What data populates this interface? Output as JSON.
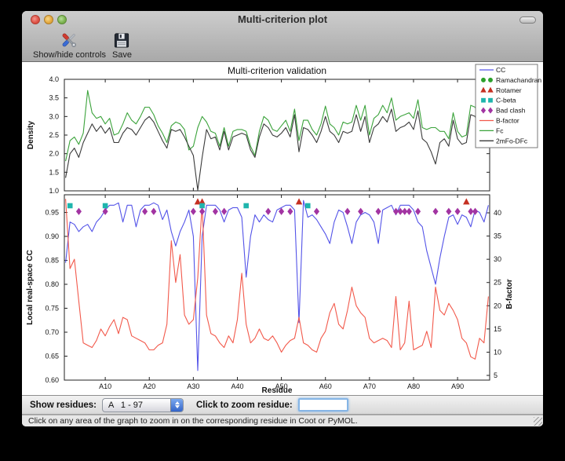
{
  "window": {
    "title": "Multi-criterion plot",
    "toolbar": {
      "controls_label": "Show/hide controls",
      "save_label": "Save"
    }
  },
  "controls": {
    "show_residues_label": "Show residues:",
    "range_value": "A   1 - 97",
    "zoom_label": "Click to zoom residue:",
    "zoom_input_value": ""
  },
  "status_bar": {
    "text": "Click on any area of the graph to zoom in on the corresponding residue in Coot or PyMOL."
  },
  "chart_data": [
    {
      "type": "line",
      "title": "Multi-criterion validation",
      "ylabel": "Density",
      "ylim": [
        1.0,
        4.0
      ],
      "yticks": [
        4.0,
        3.5,
        3.0,
        2.5,
        2.0,
        1.5,
        1.0
      ],
      "ytick_labels": [
        "4.0",
        "3.5",
        "3.0",
        "2.5",
        "2.0",
        "1.5",
        "1.0"
      ],
      "x_start": 1,
      "series": [
        {
          "name": "Fc",
          "color": "#3ba33b",
          "values": [
            1.8,
            2.35,
            2.45,
            2.25,
            2.55,
            3.7,
            3.1,
            2.95,
            3.0,
            2.8,
            2.95,
            2.5,
            2.55,
            2.8,
            3.1,
            2.9,
            2.8,
            3.0,
            3.25,
            3.25,
            3.05,
            2.75,
            2.55,
            2.3,
            2.75,
            2.85,
            2.8,
            2.65,
            2.1,
            2.2,
            2.7,
            3.0,
            2.85,
            2.6,
            2.55,
            2.2,
            2.7,
            2.2,
            2.6,
            2.65,
            2.65,
            2.6,
            2.2,
            1.95,
            2.6,
            3.0,
            2.9,
            2.65,
            2.6,
            2.75,
            2.9,
            2.6,
            3.2,
            2.35,
            2.9,
            2.9,
            2.65,
            2.5,
            2.8,
            3.28,
            2.8,
            2.7,
            2.5,
            2.85,
            2.8,
            2.85,
            3.3,
            2.9,
            3.3,
            2.5,
            2.95,
            3.05,
            3.3,
            3.1,
            3.5,
            2.9,
            3.0,
            3.05,
            3.1,
            2.95,
            3.45,
            2.7,
            2.65,
            2.7,
            2.7,
            2.6,
            2.6,
            2.4,
            3.1,
            2.6,
            2.45,
            2.5,
            3.3,
            3.25,
            2.85,
            3.5,
            3.1
          ]
        },
        {
          "name": "2mFo-DFc",
          "color": "#3a3a3a",
          "values": [
            1.35,
            2.0,
            2.15,
            1.9,
            2.3,
            2.55,
            2.8,
            2.6,
            2.75,
            2.55,
            2.7,
            2.3,
            2.3,
            2.55,
            2.7,
            2.65,
            2.5,
            2.7,
            2.9,
            3.0,
            2.85,
            2.6,
            2.35,
            2.15,
            2.65,
            2.6,
            2.65,
            2.45,
            2.2,
            1.95,
            1.02,
            1.9,
            2.65,
            2.4,
            2.45,
            2.1,
            2.6,
            2.1,
            2.45,
            2.5,
            2.55,
            2.5,
            2.1,
            1.9,
            2.45,
            2.8,
            2.7,
            2.5,
            2.45,
            2.55,
            2.7,
            2.45,
            3.05,
            2.05,
            2.7,
            2.65,
            2.5,
            2.3,
            2.6,
            3.0,
            2.6,
            2.5,
            2.3,
            2.6,
            2.55,
            2.6,
            3.05,
            2.6,
            3.0,
            2.3,
            2.7,
            2.8,
            3.0,
            2.85,
            3.2,
            2.6,
            2.7,
            2.75,
            2.85,
            2.65,
            3.15,
            2.4,
            2.3,
            2.05,
            1.72,
            2.3,
            2.4,
            2.2,
            2.9,
            2.4,
            2.25,
            2.3,
            3.05,
            3.0,
            2.6,
            2.9,
            3.0
          ]
        }
      ]
    },
    {
      "type": "line+scatter",
      "xlabel": "Residue",
      "ylabel": "Local real-space CC",
      "ylabel_right": "B-factor",
      "ylim": [
        0.6,
        0.987
      ],
      "ylim_right": [
        5,
        43.8
      ],
      "yticks": [
        0.95,
        0.9,
        0.85,
        0.8,
        0.75,
        0.7,
        0.65,
        0.6
      ],
      "ytick_labels": [
        "0.95",
        "0.90",
        "0.85",
        "0.80",
        "0.75",
        "0.70",
        "0.65",
        "0.60"
      ],
      "yticks_right": [
        40,
        35,
        30,
        25,
        20,
        15,
        10,
        5
      ],
      "ytick_labels_right": [
        "40",
        "35",
        "30",
        "25",
        "20",
        "15",
        "10",
        "5"
      ],
      "xticks": [
        10,
        20,
        30,
        40,
        50,
        60,
        70,
        80,
        90
      ],
      "xtick_labels": [
        "A10",
        "A20",
        "A30",
        "A40",
        "A50",
        "A60",
        "A70",
        "A80",
        "A90"
      ],
      "x_start": 1,
      "series": [
        {
          "name": "CC",
          "axis": "left",
          "color": "#5353e8",
          "values": [
            0.845,
            0.93,
            0.925,
            0.91,
            0.92,
            0.925,
            0.91,
            0.93,
            0.94,
            0.955,
            0.965,
            0.965,
            0.97,
            0.93,
            0.965,
            0.965,
            0.92,
            0.955,
            0.965,
            0.965,
            0.97,
            0.965,
            0.935,
            0.955,
            0.91,
            0.88,
            0.91,
            0.93,
            0.955,
            0.9,
            0.62,
            0.9,
            0.965,
            0.965,
            0.965,
            0.955,
            0.93,
            0.955,
            0.96,
            0.96,
            0.94,
            0.815,
            0.9,
            0.945,
            0.93,
            0.945,
            0.935,
            0.93,
            0.955,
            0.96,
            0.965,
            0.965,
            0.955,
            0.72,
            0.975,
            0.94,
            0.945,
            0.935,
            0.92,
            0.905,
            0.885,
            0.93,
            0.955,
            0.95,
            0.92,
            0.885,
            0.93,
            0.945,
            0.95,
            0.945,
            0.93,
            0.885,
            0.955,
            0.96,
            0.965,
            0.945,
            0.965,
            0.965,
            0.965,
            0.955,
            0.93,
            0.92,
            0.87,
            0.835,
            0.8,
            0.855,
            0.9,
            0.94,
            0.945,
            0.925,
            0.945,
            0.94,
            0.92,
            0.955,
            0.95,
            0.93,
            0.965
          ]
        },
        {
          "name": "B-factor",
          "axis": "right",
          "color": "#f2594b",
          "values": [
            43,
            28,
            30,
            21,
            12,
            11.5,
            11,
            12.5,
            15,
            13.5,
            15.5,
            17,
            14,
            17.5,
            17,
            13.5,
            13,
            12.5,
            12,
            10.5,
            10.5,
            11.5,
            12,
            16,
            34,
            25,
            31,
            18,
            16,
            17,
            26,
            42,
            18,
            14,
            13.5,
            12,
            11,
            13.5,
            12,
            17,
            27,
            16,
            12,
            13,
            15,
            13,
            12.5,
            13.5,
            12,
            10,
            11.5,
            12.5,
            13,
            17.5,
            12,
            11.5,
            10.5,
            10,
            13,
            14.5,
            18.5,
            20.5,
            16,
            15,
            19,
            24,
            20,
            18.5,
            17.5,
            13,
            12,
            12.5,
            13,
            12.5,
            11,
            22,
            10.5,
            12,
            21,
            10.5,
            11,
            11.5,
            14.5,
            11,
            24,
            19,
            18,
            20.5,
            19,
            17,
            13,
            12,
            9,
            8.5,
            13,
            12,
            22
          ]
        }
      ],
      "markers": [
        {
          "name": "Ramachandran",
          "shape": "circle",
          "color": "#2ca02c",
          "y_cc": 0.972,
          "residues": []
        },
        {
          "name": "Rotamer",
          "shape": "triangle",
          "color": "#c53022",
          "y_cc": 0.972,
          "residues": [
            31,
            32,
            54,
            92
          ]
        },
        {
          "name": "C-beta",
          "shape": "square",
          "color": "#1fb5ad",
          "y_cc": 0.964,
          "residues": [
            2,
            10,
            32,
            42,
            56
          ]
        },
        {
          "name": "Bad clash",
          "shape": "diamond",
          "color": "#a234a2",
          "y_cc": 0.952,
          "residues": [
            4,
            10,
            19,
            21,
            30,
            32,
            35,
            37,
            47,
            50,
            52,
            58,
            65,
            68,
            72,
            76,
            77,
            78,
            79,
            81,
            85,
            88,
            90,
            93,
            94
          ]
        }
      ],
      "legend": [
        {
          "label": "CC",
          "type": "line",
          "color": "#5353e8"
        },
        {
          "label": "Ramachandran",
          "type": "circle",
          "color": "#2ca02c"
        },
        {
          "label": "Rotamer",
          "type": "triangle",
          "color": "#c53022"
        },
        {
          "label": "C-beta",
          "type": "square",
          "color": "#1fb5ad"
        },
        {
          "label": "Bad clash",
          "type": "diamond",
          "color": "#a234a2"
        },
        {
          "label": "B-factor",
          "type": "line",
          "color": "#f2594b"
        },
        {
          "label": "Fc",
          "type": "line",
          "color": "#3ba33b"
        },
        {
          "label": "2mFo-DFc",
          "type": "line",
          "color": "#3a3a3a"
        }
      ]
    }
  ]
}
